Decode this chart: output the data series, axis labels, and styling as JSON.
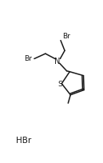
{
  "bg_color": "#ffffff",
  "line_color": "#1a1a1a",
  "line_width": 1.1,
  "font_size": 6.5,
  "hbr_label": "HBr",
  "N_label": "N",
  "S_label": "S",
  "Br1_label": "Br",
  "Br2_label": "Br",
  "xlim": [
    0,
    10
  ],
  "ylim": [
    0,
    16
  ]
}
